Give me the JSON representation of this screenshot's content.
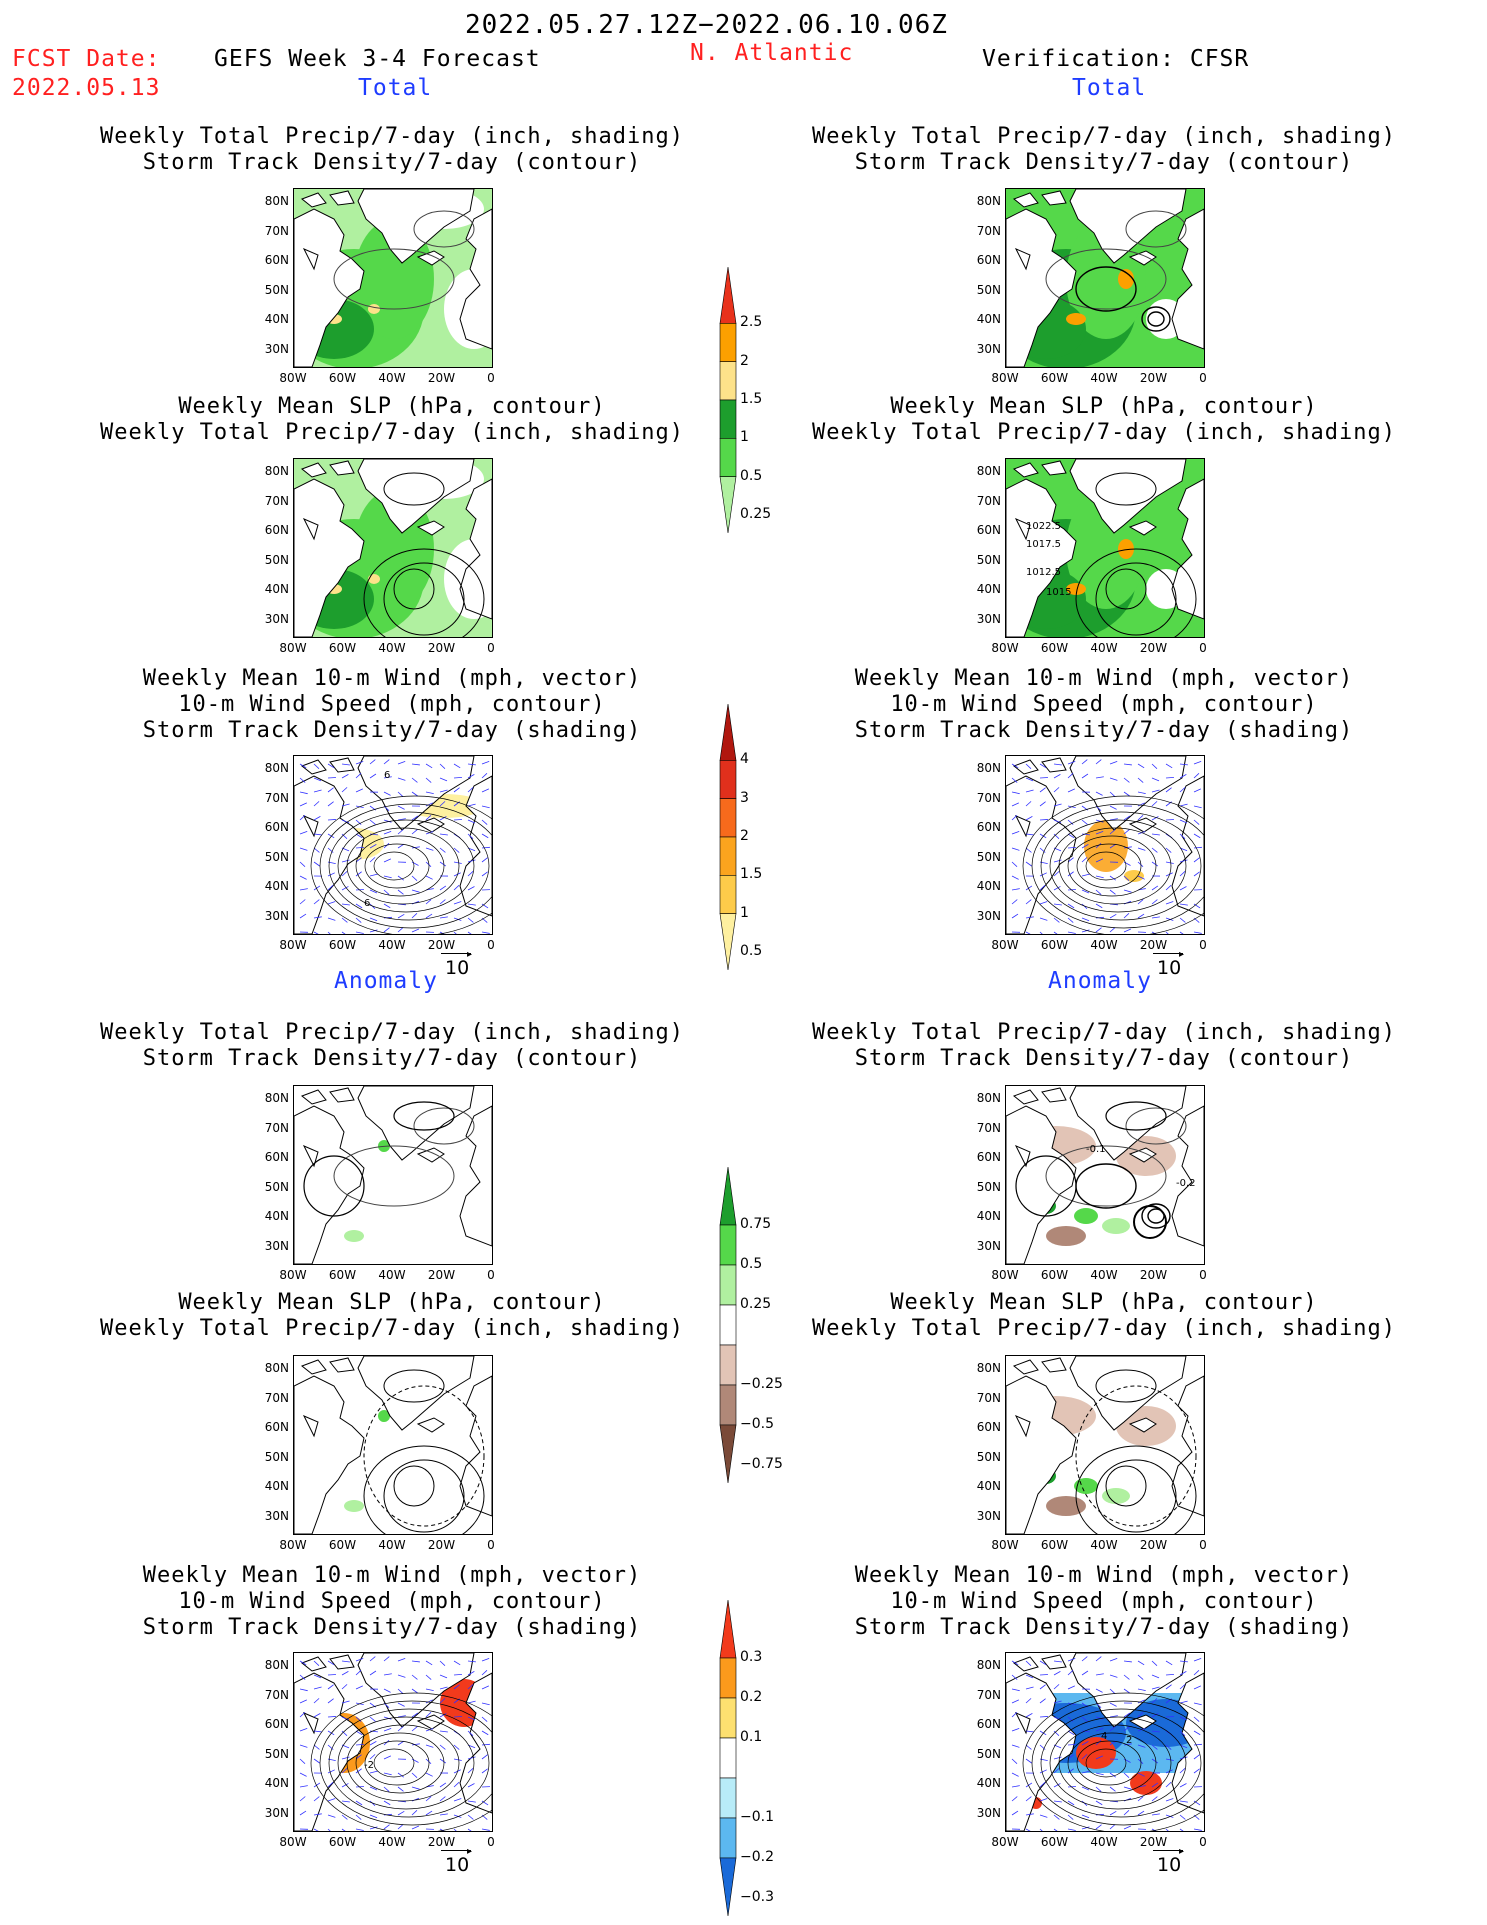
{
  "header": {
    "period": "2022.05.27.12Z−2022.06.10.06Z",
    "fcst_label": "FCST Date:",
    "fcst_date": "2022.05.13",
    "model_title": "GEFS Week 3-4 Forecast",
    "region": "N. Atlantic",
    "verification": "Verification: CFSR"
  },
  "sections": {
    "total": "Total",
    "anomaly": "Anomaly"
  },
  "panel_titles": {
    "precip_storm": "Weekly Total Precip/7-day (inch, shading)\nStorm Track Density/7-day (contour)",
    "slp_precip": "Weekly Mean SLP (hPa, contour)\nWeekly Total Precip/7-day (inch, shading)",
    "wind": "Weekly Mean 10-m Wind (mph, vector)\n10-m Wind Speed (mph, contour)\nStorm Track Density/7-day (shading)"
  },
  "axes": {
    "lat_ticks": [
      "80N",
      "70N",
      "60N",
      "50N",
      "40N",
      "30N"
    ],
    "lon_ticks": [
      "80W",
      "60W",
      "40W",
      "20W",
      "0"
    ]
  },
  "vector_reference": "10",
  "contour_labels": {
    "slp_verif": [
      "1022.5",
      "1017.5",
      "1012.5",
      "1015"
    ],
    "wind_fcst": [
      "6",
      "6"
    ],
    "anom_storm_verif": [
      "-0.1",
      "-0.2"
    ],
    "anom_wind_fcst": [
      "-2"
    ],
    "anom_wind_verif": [
      "4",
      "2"
    ]
  },
  "colorbars": {
    "total_precip": {
      "labels": [
        "2.5",
        "2",
        "1.5",
        "1",
        "0.5",
        "0.25"
      ],
      "colors": [
        "#e8321c",
        "#fca000",
        "#fde28a",
        "#1d9e2d",
        "#55d84a",
        "#b0f0a0"
      ]
    },
    "total_storm": {
      "labels": [
        "4",
        "3",
        "2",
        "1.5",
        "1",
        "0.5"
      ],
      "colors": [
        "#b0170f",
        "#e0301c",
        "#f76a1c",
        "#fba41e",
        "#fdcb4a",
        "#fef0a0"
      ]
    },
    "anom_precip": {
      "labels": [
        "0.75",
        "0.5",
        "0.25",
        "−0.25",
        "−0.5",
        "−0.75"
      ],
      "colors": [
        "#1d9e2d",
        "#55d84a",
        "#b0f0a0",
        "#ffffff",
        "#e2c4b6",
        "#b08878",
        "#7a4a38"
      ]
    },
    "anom_storm": {
      "labels": [
        "0.3",
        "0.2",
        "0.1",
        "−0.1",
        "−0.2",
        "−0.3"
      ],
      "colors": [
        "#f23a1c",
        "#fb9a1c",
        "#fde070",
        "#ffffff",
        "#b8ecf8",
        "#5cb8f0",
        "#1a6ad8"
      ]
    }
  }
}
